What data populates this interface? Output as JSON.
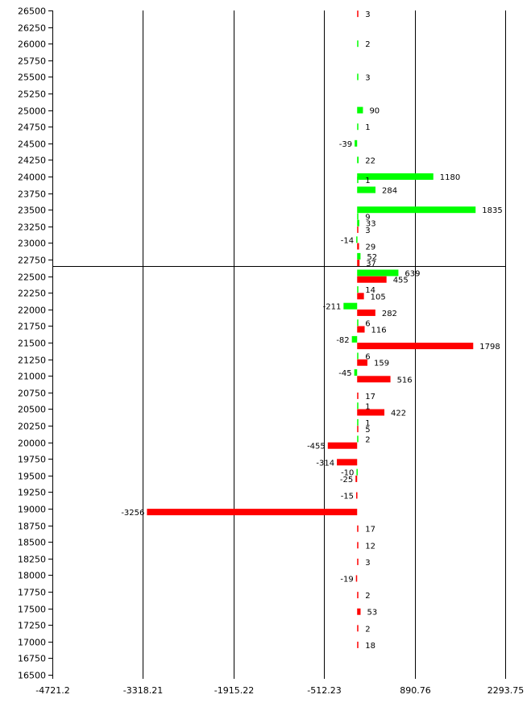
{
  "chart_data": {
    "type": "bar",
    "orientation": "horizontal",
    "title": "",
    "xlabel": "",
    "ylabel": "",
    "xlim": [
      -4721.2,
      2293.75
    ],
    "ylim": [
      16500,
      26500
    ],
    "x_ticks": [
      "-4721.2",
      "-3318.21",
      "-1915.22",
      "-512.23",
      "890.76",
      "2293.75"
    ],
    "y_ticks": [
      "26500",
      "26250",
      "26000",
      "25750",
      "25500",
      "25250",
      "25000",
      "24750",
      "24500",
      "24250",
      "24000",
      "23750",
      "23500",
      "23250",
      "23000",
      "22750",
      "22500",
      "22250",
      "22000",
      "21750",
      "21500",
      "21250",
      "21000",
      "20750",
      "20500",
      "20250",
      "20000",
      "19750",
      "19500",
      "19250",
      "19000",
      "18750",
      "18500",
      "18250",
      "18000",
      "17750",
      "17500",
      "17250",
      "17000",
      "16750",
      "16500"
    ],
    "reference_line_y": 22650,
    "grid": "vertical",
    "colors": {
      "green": "#00ff00",
      "red": "#ff0000"
    },
    "series": [
      {
        "color": "green",
        "points": [
          {
            "y": 26000,
            "value": 2
          },
          {
            "y": 25500,
            "value": 3
          },
          {
            "y": 25000,
            "value": 90
          },
          {
            "y": 24750,
            "value": 1
          },
          {
            "y": 24500,
            "value": -39
          },
          {
            "y": 24250,
            "value": 22
          },
          {
            "y": 24000,
            "value": 1180
          },
          {
            "y": 23950,
            "value": 1
          },
          {
            "y": 23800,
            "value": 284
          },
          {
            "y": 23500,
            "value": 1835
          },
          {
            "y": 23400,
            "value": 9
          },
          {
            "y": 23300,
            "value": 33
          },
          {
            "y": 23050,
            "value": -14
          },
          {
            "y": 22800,
            "value": 52
          },
          {
            "y": 22550,
            "value": 639
          },
          {
            "y": 22300,
            "value": 14
          },
          {
            "y": 22050,
            "value": -211
          },
          {
            "y": 21800,
            "value": 6
          },
          {
            "y": 21550,
            "value": -82
          },
          {
            "y": 21300,
            "value": 6
          },
          {
            "y": 21050,
            "value": -45
          },
          {
            "y": 20550,
            "value": 1
          },
          {
            "y": 20300,
            "value": 1
          },
          {
            "y": 20050,
            "value": 2
          },
          {
            "y": 19550,
            "value": -10
          }
        ]
      },
      {
        "color": "red",
        "points": [
          {
            "y": 26450,
            "value": 3
          },
          {
            "y": 23200,
            "value": 3
          },
          {
            "y": 22950,
            "value": 29
          },
          {
            "y": 22700,
            "value": 37
          },
          {
            "y": 22450,
            "value": 455
          },
          {
            "y": 22200,
            "value": 105
          },
          {
            "y": 21950,
            "value": 282
          },
          {
            "y": 21700,
            "value": 116
          },
          {
            "y": 21450,
            "value": 1798
          },
          {
            "y": 21200,
            "value": 159
          },
          {
            "y": 20950,
            "value": 516
          },
          {
            "y": 20700,
            "value": 17
          },
          {
            "y": 20450,
            "value": 422
          },
          {
            "y": 20200,
            "value": 5
          },
          {
            "y": 19950,
            "value": -455
          },
          {
            "y": 19700,
            "value": -314
          },
          {
            "y": 19450,
            "value": -25
          },
          {
            "y": 19200,
            "value": -15
          },
          {
            "y": 18950,
            "value": -3256
          },
          {
            "y": 18700,
            "value": 17
          },
          {
            "y": 18450,
            "value": 12
          },
          {
            "y": 18200,
            "value": 3
          },
          {
            "y": 17950,
            "value": -19
          },
          {
            "y": 17700,
            "value": 2
          },
          {
            "y": 17450,
            "value": 53
          },
          {
            "y": 17200,
            "value": 2
          },
          {
            "y": 16950,
            "value": 18
          }
        ]
      }
    ]
  }
}
